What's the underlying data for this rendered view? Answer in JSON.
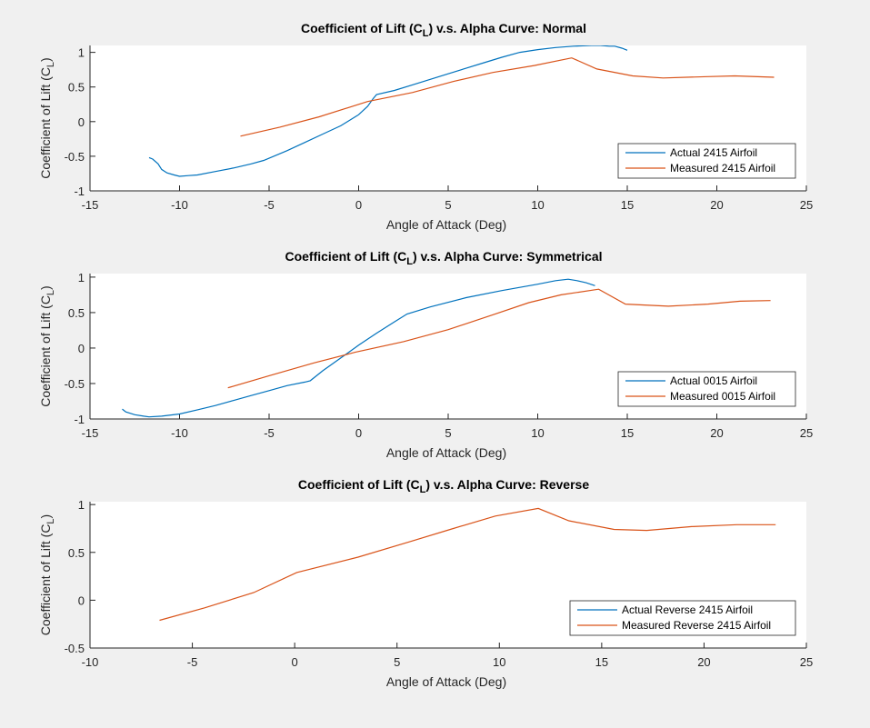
{
  "chart_data": [
    {
      "type": "line",
      "title": "Coefficient of Lift (C_L) v.s. Alpha Curve: Normal",
      "title_parts": {
        "pre": "Coefficient of Lift (C",
        "sub": "L",
        "post": ") v.s. Alpha Curve: Normal"
      },
      "xlabel": "Angle of Attack (Deg)",
      "ylabel": {
        "pre": "Coefficient of Lift (C",
        "sub": "L",
        "post": ")"
      },
      "xlim": [
        -15,
        25
      ],
      "ylim": [
        -1,
        1.1
      ],
      "xticks": [
        -15,
        -10,
        -5,
        0,
        5,
        10,
        15,
        20,
        25
      ],
      "yticks": [
        -1,
        -0.5,
        0,
        0.5,
        1
      ],
      "xtick_labels": [
        "-15",
        "-10",
        "-5",
        "0",
        "5",
        "10",
        "15",
        "20",
        "25"
      ],
      "ytick_labels": [
        "-1",
        "-0.5",
        "0",
        "0.5",
        "1"
      ],
      "legend": "bottom-right",
      "grid": false,
      "series": [
        {
          "name": "Actual 2415 Airfoil",
          "color": "#0072BD",
          "x": [
            -11.7,
            -11.5,
            -11.2,
            -11.0,
            -10.7,
            -10.3,
            -10.0,
            -9.5,
            -9.0,
            -8.0,
            -7.0,
            -6.0,
            -5.3,
            -4.0,
            -3.0,
            -2.0,
            -1.0,
            0.0,
            0.5,
            0.8,
            1.0,
            2.0,
            3.0,
            4.0,
            5.0,
            6.0,
            7.0,
            8.0,
            9.0,
            10.0,
            11.0,
            12.0,
            13.0,
            13.5,
            14.0,
            14.3,
            14.7,
            15.0
          ],
          "y": [
            -0.52,
            -0.54,
            -0.61,
            -0.69,
            -0.74,
            -0.77,
            -0.79,
            -0.78,
            -0.77,
            -0.72,
            -0.67,
            -0.61,
            -0.56,
            -0.42,
            -0.3,
            -0.18,
            -0.06,
            0.1,
            0.22,
            0.33,
            0.39,
            0.45,
            0.53,
            0.61,
            0.69,
            0.77,
            0.85,
            0.93,
            1.0,
            1.04,
            1.07,
            1.09,
            1.1,
            1.1,
            1.09,
            1.09,
            1.06,
            1.03
          ]
        },
        {
          "name": "Measured 2415 Airfoil",
          "color": "#D95319",
          "x": [
            -6.6,
            -4.4,
            -2.2,
            0.5,
            3.0,
            5.3,
            7.5,
            9.8,
            11.9,
            13.3,
            15.3,
            17.0,
            19.5,
            21.0,
            23.2
          ],
          "y": [
            -0.21,
            -0.08,
            0.07,
            0.29,
            0.42,
            0.58,
            0.71,
            0.81,
            0.92,
            0.76,
            0.66,
            0.63,
            0.65,
            0.66,
            0.64
          ]
        }
      ]
    },
    {
      "type": "line",
      "title": "Coefficient of Lift (C_L) v.s. Alpha Curve: Symmetrical",
      "title_parts": {
        "pre": "Coefficient of Lift (C",
        "sub": "L",
        "post": ") v.s. Alpha Curve: Symmetrical"
      },
      "xlabel": "Angle of Attack (Deg)",
      "ylabel": {
        "pre": "Coefficient of Lift (C",
        "sub": "L",
        "post": ")"
      },
      "xlim": [
        -15,
        25
      ],
      "ylim": [
        -1,
        1.05
      ],
      "xticks": [
        -15,
        -10,
        -5,
        0,
        5,
        10,
        15,
        20,
        25
      ],
      "yticks": [
        -1,
        -0.5,
        0,
        0.5,
        1
      ],
      "xtick_labels": [
        "-15",
        "-10",
        "-5",
        "0",
        "5",
        "10",
        "15",
        "20",
        "25"
      ],
      "ytick_labels": [
        "-1",
        "-0.5",
        "0",
        "0.5",
        "1"
      ],
      "legend": "bottom-right",
      "grid": false,
      "series": [
        {
          "name": "Actual 0015 Airfoil",
          "color": "#0072BD",
          "x": [
            -13.2,
            -13.0,
            -12.5,
            -12.0,
            -11.7,
            -11.0,
            -10.0,
            -9.0,
            -8.0,
            -7.0,
            -6.0,
            -5.0,
            -4.0,
            -3.0,
            -2.7,
            -2.0,
            -1.0,
            0.0,
            1.0,
            2.0,
            2.7,
            4.0,
            6.0,
            8.0,
            10.0,
            11.0,
            11.7,
            12.2,
            12.7,
            13.2
          ],
          "y": [
            -0.86,
            -0.9,
            -0.94,
            -0.96,
            -0.97,
            -0.96,
            -0.93,
            -0.87,
            -0.81,
            -0.74,
            -0.67,
            -0.6,
            -0.53,
            -0.48,
            -0.46,
            -0.32,
            -0.14,
            0.04,
            0.21,
            0.37,
            0.48,
            0.58,
            0.71,
            0.81,
            0.9,
            0.95,
            0.97,
            0.95,
            0.92,
            0.88
          ]
        },
        {
          "name": "Measured 0015 Airfoil",
          "color": "#D95319",
          "x": [
            -7.3,
            -5.0,
            -2.5,
            -0.2,
            2.5,
            5.0,
            7.5,
            9.5,
            11.3,
            13.4,
            14.9,
            17.3,
            19.5,
            21.3,
            23.0
          ],
          "y": [
            -0.56,
            -0.39,
            -0.21,
            -0.06,
            0.09,
            0.26,
            0.47,
            0.64,
            0.75,
            0.83,
            0.62,
            0.59,
            0.62,
            0.66,
            0.67
          ]
        }
      ]
    },
    {
      "type": "line",
      "title": "Coefficient of Lift (C_L) v.s. Alpha Curve: Reverse",
      "title_parts": {
        "pre": "Coefficient of Lift (C",
        "sub": "L",
        "post": ") v.s. Alpha Curve: Reverse"
      },
      "xlabel": "Angle of Attack (Deg)",
      "ylabel": {
        "pre": "Coefficient of Lift (C",
        "sub": "L",
        "post": ")"
      },
      "xlim": [
        -10,
        25
      ],
      "ylim": [
        -0.5,
        1.03
      ],
      "xticks": [
        -10,
        -5,
        0,
        5,
        10,
        15,
        20,
        25
      ],
      "yticks": [
        -0.5,
        0,
        0.5,
        1
      ],
      "xtick_labels": [
        "-10",
        "-5",
        "0",
        "5",
        "10",
        "15",
        "20",
        "25"
      ],
      "ytick_labels": [
        "-0.5",
        "0",
        "0.5",
        "1"
      ],
      "legend": "bottom-right",
      "grid": false,
      "series": [
        {
          "name": "Actual Reverse 2415 Airfoil",
          "color": "#0072BD",
          "x": [],
          "y": []
        },
        {
          "name": "Measured Reverse 2415 Airfoil",
          "color": "#D95319",
          "x": [
            -6.6,
            -4.4,
            -2.0,
            0.1,
            3.1,
            5.6,
            7.6,
            9.8,
            11.9,
            13.4,
            15.6,
            17.2,
            19.4,
            21.6,
            23.5
          ],
          "y": [
            -0.21,
            -0.08,
            0.08,
            0.29,
            0.45,
            0.61,
            0.74,
            0.88,
            0.96,
            0.83,
            0.74,
            0.73,
            0.77,
            0.79,
            0.79
          ]
        }
      ]
    }
  ]
}
